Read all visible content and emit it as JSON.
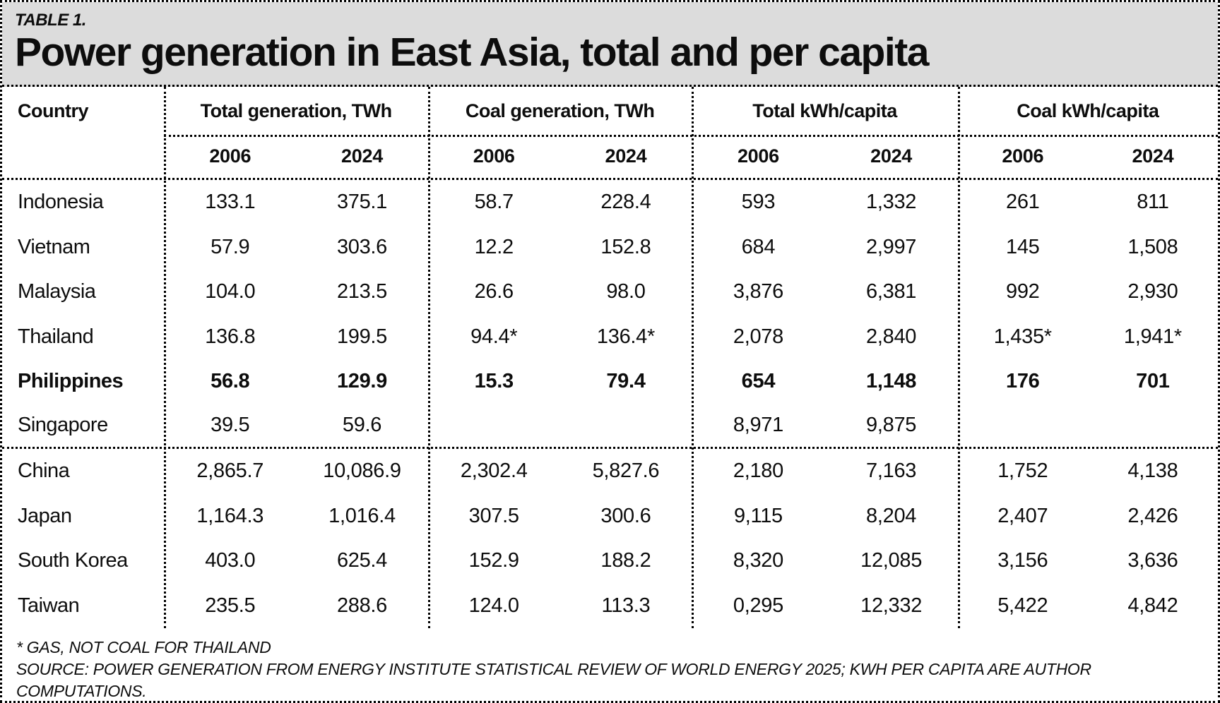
{
  "chart_data": {
    "type": "table",
    "table_label": "TABLE 1.",
    "title": "Power generation in East Asia, total and per capita",
    "columns": {
      "country": "Country",
      "groups": [
        {
          "label": "Total generation, TWh",
          "years": [
            "2006",
            "2024"
          ]
        },
        {
          "label": "Coal generation, TWh",
          "years": [
            "2006",
            "2024"
          ]
        },
        {
          "label": "Total kWh/capita",
          "years": [
            "2006",
            "2024"
          ]
        },
        {
          "label": "Coal kWh/capita",
          "years": [
            "2006",
            "2024"
          ]
        }
      ]
    },
    "rows": [
      {
        "country": "Indonesia",
        "bold": false,
        "values": [
          "133.1",
          "375.1",
          "58.7",
          "228.4",
          "593",
          "1,332",
          "261",
          "811"
        ]
      },
      {
        "country": "Vietnam",
        "bold": false,
        "values": [
          "57.9",
          "303.6",
          "12.2",
          "152.8",
          "684",
          "2,997",
          "145",
          "1,508"
        ]
      },
      {
        "country": "Malaysia",
        "bold": false,
        "values": [
          "104.0",
          "213.5",
          "26.6",
          "98.0",
          "3,876",
          "6,381",
          "992",
          "2,930"
        ]
      },
      {
        "country": "Thailand",
        "bold": false,
        "values": [
          "136.8",
          "199.5",
          "94.4*",
          "136.4*",
          "2,078",
          "2,840",
          "1,435*",
          "1,941*"
        ]
      },
      {
        "country": "Philippines",
        "bold": true,
        "values": [
          "56.8",
          "129.9",
          "15.3",
          "79.4",
          "654",
          "1,148",
          "176",
          "701"
        ]
      },
      {
        "country": "Singapore",
        "bold": false,
        "values": [
          "39.5",
          "59.6",
          "",
          "",
          "8,971",
          "9,875",
          "",
          ""
        ]
      },
      {
        "country": "China",
        "bold": false,
        "values": [
          "2,865.7",
          "10,086.9",
          "2,302.4",
          "5,827.6",
          "2,180",
          "7,163",
          "1,752",
          "4,138"
        ]
      },
      {
        "country": "Japan",
        "bold": false,
        "values": [
          "1,164.3",
          "1,016.4",
          "307.5",
          "300.6",
          "9,115",
          "8,204",
          "2,407",
          "2,426"
        ]
      },
      {
        "country": "South Korea",
        "bold": false,
        "values": [
          "403.0",
          "625.4",
          "152.9",
          "188.2",
          "8,320",
          "12,085",
          "3,156",
          "3,636"
        ]
      },
      {
        "country": "Taiwan",
        "bold": false,
        "values": [
          "235.5",
          "288.6",
          "124.0",
          "113.3",
          "0,295",
          "12,332",
          "5,422",
          "4,842"
        ]
      }
    ],
    "footnotes": [
      "* GAS, NOT COAL FOR THAILAND",
      "SOURCE: POWER GENERATION FROM ENERGY INSTITUTE STATISTICAL REVIEW OF WORLD ENERGY 2025; KWH PER CAPITA ARE AUTHOR COMPUTATIONS."
    ],
    "colors": {
      "title_band": "#dcdcdc",
      "border": "#000000",
      "text": "#0d0d0d"
    }
  }
}
